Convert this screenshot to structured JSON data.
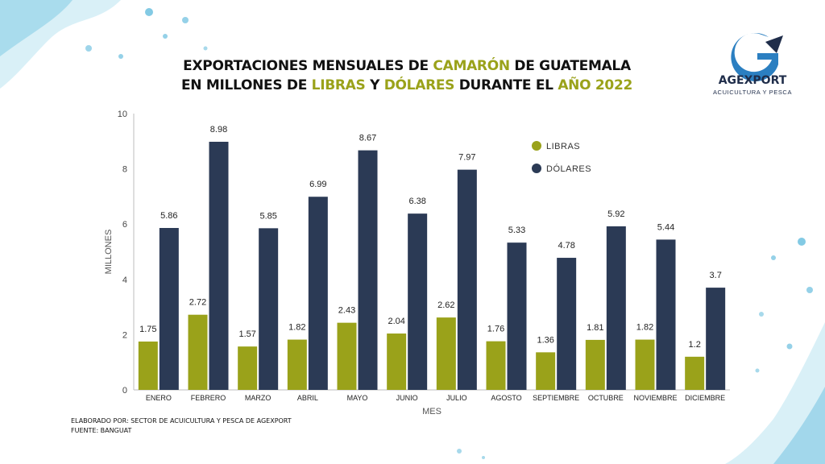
{
  "header": {
    "title_line1_a": "EXPORTACIONES MENSUALES DE ",
    "title_line1_hl": "CAMARÓN",
    "title_line1_b": " DE GUATEMALA",
    "title_line2_a": "EN MILLONES DE ",
    "title_line2_hl1": "LIBRAS",
    "title_line2_b": " Y ",
    "title_line2_hl2": "DÓLARES",
    "title_line2_c": " DURANTE EL ",
    "title_line2_hl3": "AÑO 2022"
  },
  "logo": {
    "name": "AGEXPORT",
    "subtitle": "ACUICULTURA Y PESCA",
    "icon": "agexport-g-logo-icon"
  },
  "footer": {
    "line1": "ELABORADO POR: SECTOR DE ACUICULTURA Y PESCA DE AGEXPORT",
    "line2": "FUENTE:  BANGUAT"
  },
  "colors": {
    "libras": "#9aa21a",
    "dolares": "#2b3a55",
    "highlight": "#9aa21a"
  },
  "chart_data": {
    "type": "bar",
    "categories": [
      "ENERO",
      "FEBRERO",
      "MARZO",
      "ABRIL",
      "MAYO",
      "JUNIO",
      "JULIO",
      "AGOSTO",
      "SEPTIEMBRE",
      "OCTUBRE",
      "NOVIEMBRE",
      "DICIEMBRE"
    ],
    "series": [
      {
        "name": "LIBRAS",
        "values": [
          1.75,
          2.72,
          1.57,
          1.82,
          2.43,
          2.04,
          2.62,
          1.76,
          1.36,
          1.81,
          1.82,
          1.2
        ]
      },
      {
        "name": "DÓLARES",
        "values": [
          5.86,
          8.98,
          5.85,
          6.99,
          8.67,
          6.38,
          7.97,
          5.33,
          4.78,
          5.92,
          5.44,
          3.7
        ]
      }
    ],
    "data_labels": [
      [
        "1.75",
        "2.72",
        "1.57",
        "1.82",
        "2.43",
        "2.04",
        "2.62",
        "1.76",
        "1.36",
        "1.81",
        "1.82",
        "1.2"
      ],
      [
        "5.86",
        "8.98",
        "5.85",
        "6.99",
        "8.67",
        "6.38",
        "7.97",
        "5.33",
        "4.78",
        "5.92",
        "5.44",
        "3.7"
      ]
    ],
    "xlabel": "MES",
    "ylabel": "MILLONES",
    "ylim": [
      0,
      10
    ],
    "yticks": [
      0,
      2,
      4,
      6,
      8,
      10
    ],
    "grid": false,
    "legend_position": "top-right"
  }
}
